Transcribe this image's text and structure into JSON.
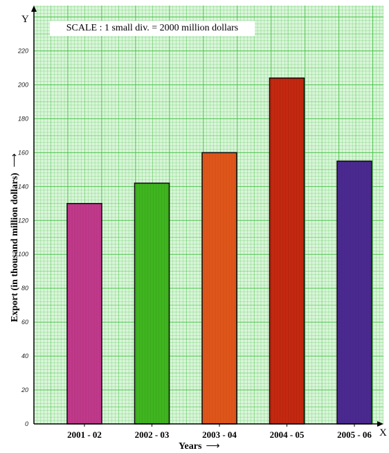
{
  "chart_data": {
    "type": "bar",
    "title": "SCALE : 1 small div. = 2000 million dollars",
    "xlabel": "Years",
    "ylabel": "Export (in thousand million dollars)",
    "x_axis_letter": "X",
    "y_axis_letter": "Y",
    "categories": [
      "2001 - 02",
      "2002 - 03",
      "2003 - 04",
      "2004 - 05",
      "2005 - 06"
    ],
    "values": [
      130,
      142,
      160,
      204,
      155
    ],
    "bar_colors": [
      "#c0398a",
      "#3fb51f",
      "#e0561a",
      "#c42810",
      "#4b2a90"
    ],
    "ylim": [
      0,
      240
    ],
    "yticks": [
      0,
      20,
      40,
      60,
      80,
      100,
      120,
      140,
      160,
      180,
      200,
      220
    ],
    "grid": true,
    "grid_color": "#3fbf3f",
    "background_color": "#d9f5d9"
  }
}
